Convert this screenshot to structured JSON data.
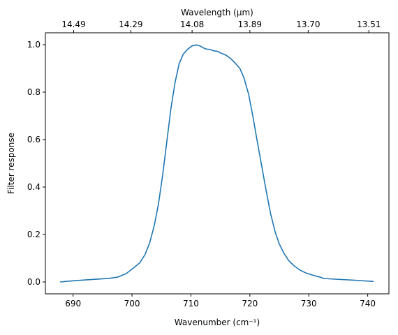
{
  "chart_data": {
    "type": "line",
    "title": "",
    "xlabel": "Wavenumber (cm⁻¹)",
    "ylabel": "Filter response",
    "top_xlabel": "Wavelength (μm)",
    "xlim": [
      685.3,
      743.6
    ],
    "ylim": [
      -0.05,
      1.05
    ],
    "x_ticks": [
      690,
      700,
      710,
      720,
      730,
      740
    ],
    "x_tick_labels": [
      "690",
      "700",
      "710",
      "720",
      "730",
      "740"
    ],
    "y_ticks": [
      0.0,
      0.2,
      0.4,
      0.6,
      0.8,
      1.0
    ],
    "y_tick_labels": [
      "0.0",
      "0.2",
      "0.4",
      "0.6",
      "0.8",
      "1.0"
    ],
    "top_tick_wavenumbers": [
      690.1,
      699.8,
      710.2,
      720.0,
      729.9,
      740.2
    ],
    "top_tick_labels": [
      "14.49",
      "14.29",
      "14.08",
      "13.89",
      "13.70",
      "13.51"
    ],
    "grid": false,
    "legend": "none",
    "color": "#1f77b4",
    "series": [
      {
        "x": [
          687.8,
          690.0,
          693.0,
          696.0,
          697.5,
          699.0,
          700.3,
          701.3,
          702.2,
          703.0,
          703.8,
          704.5,
          705.2,
          705.9,
          706.6,
          707.3,
          708.0,
          708.7,
          709.4,
          710.2,
          711.0,
          711.5,
          712.0,
          712.5,
          713.2,
          713.9,
          714.5,
          715.3,
          716.0,
          716.8,
          717.6,
          718.3,
          719.0,
          719.8,
          720.5,
          721.2,
          722.0,
          722.8,
          723.5,
          724.3,
          725.0,
          725.8,
          726.6,
          727.5,
          728.5,
          729.5,
          730.5,
          731.3,
          732.0,
          732.5,
          733.0,
          735.0,
          738.0,
          741.0
        ],
        "y": [
          0.0,
          0.005,
          0.01,
          0.015,
          0.02,
          0.035,
          0.06,
          0.08,
          0.115,
          0.165,
          0.24,
          0.33,
          0.45,
          0.59,
          0.73,
          0.84,
          0.92,
          0.96,
          0.98,
          0.995,
          0.999,
          0.995,
          0.988,
          0.982,
          0.98,
          0.974,
          0.972,
          0.962,
          0.955,
          0.94,
          0.92,
          0.9,
          0.86,
          0.79,
          0.7,
          0.6,
          0.49,
          0.38,
          0.29,
          0.21,
          0.16,
          0.12,
          0.09,
          0.068,
          0.05,
          0.038,
          0.03,
          0.024,
          0.02,
          0.015,
          0.014,
          0.011,
          0.007,
          0.002
        ]
      }
    ]
  }
}
